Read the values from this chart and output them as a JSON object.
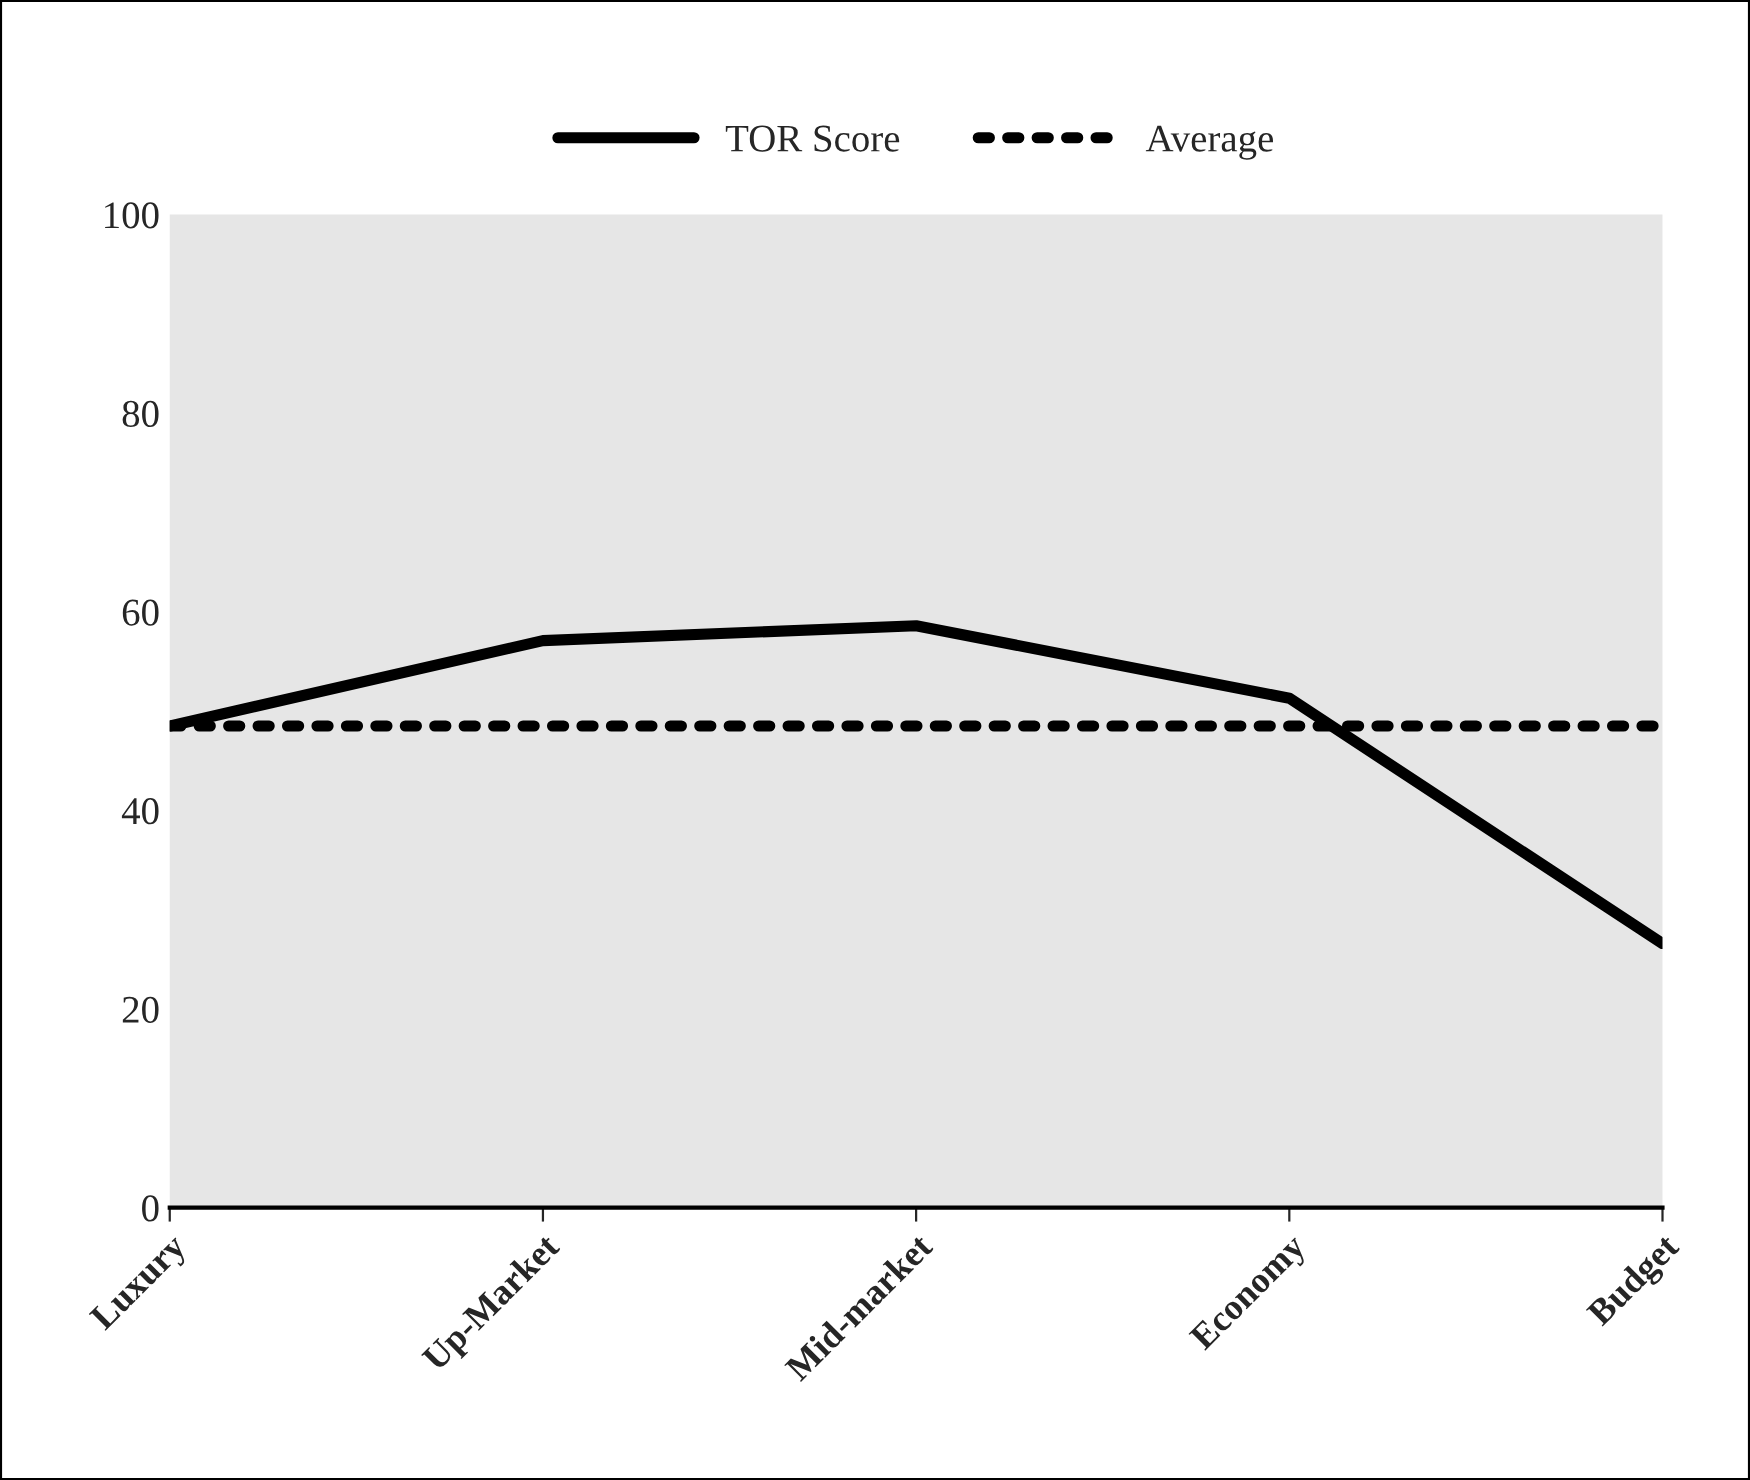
{
  "chart_data": {
    "type": "line",
    "categories": [
      "Luxury",
      "Up-Market",
      "Mid-market",
      "Economy",
      "Budget"
    ],
    "series": [
      {
        "name": "TOR Score",
        "color": "#000000",
        "line_style": "solid",
        "values": [
          48.5,
          57.1,
          58.6,
          51.3,
          26.6
        ]
      },
      {
        "name": "Average",
        "color": "#000000",
        "line_style": "dotted",
        "values": [
          48.5,
          48.5,
          48.5,
          48.5,
          48.5
        ]
      }
    ],
    "ylim": [
      0,
      100
    ],
    "yticks": [
      0,
      20,
      40,
      60,
      80,
      100
    ],
    "grid": false,
    "legend": "top",
    "marker": "none"
  }
}
